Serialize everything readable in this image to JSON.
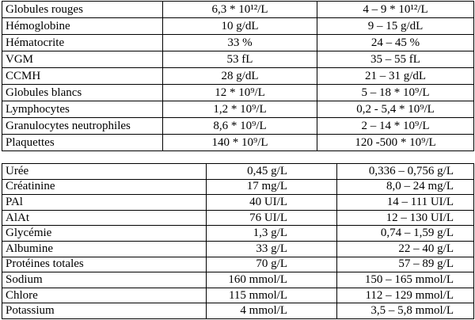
{
  "tables": [
    {
      "rows": [
        [
          "Globules rouges",
          "6,3 * 10¹²/L",
          "4 – 9 * 10¹²/L"
        ],
        [
          "Hémoglobine",
          "10 g/dL",
          "9 – 15 g/dL"
        ],
        [
          "Hématocrite",
          "33 %",
          "24 – 45 %"
        ],
        [
          "VGM",
          "53 fL",
          "35 – 55 fL"
        ],
        [
          "CCMH",
          "28 g/dL",
          "21 – 31 g/dL"
        ],
        [
          "Globules blancs",
          "12 * 10⁹/L",
          "5 – 18 * 10⁹/L"
        ],
        [
          "Lymphocytes",
          "1,2 * 10⁹/L",
          "0,2 - 5,4 * 10⁹/L"
        ],
        [
          "Granulocytes neutrophiles",
          "8,6 * 10⁹/L",
          "2 – 14 * 10⁹/L"
        ],
        [
          "Plaquettes",
          "140 * 10⁹/L",
          "120 -500 * 10⁹/L"
        ]
      ]
    },
    {
      "rows": [
        [
          "Urée",
          "0,45 g/L",
          "0,336 – 0,756 g/L"
        ],
        [
          "Créatinine",
          "17 mg/L",
          "8,0 – 24 mg/L"
        ],
        [
          "PAl",
          "40 UI/L",
          "14 – 111 UI/L"
        ],
        [
          "AlAt",
          "76 UI/L",
          "12 – 130 UI/L"
        ],
        [
          "Glycémie",
          "1,3 g/L",
          "0,74 – 1,59 g/L"
        ],
        [
          "Albumine",
          "33 g/L",
          "22 – 40 g/L"
        ],
        [
          "Protéines totales",
          "70 g/L",
          "57 – 89 g/L"
        ],
        [
          "Sodium",
          "160 mmol/L",
          "150 – 165 mmol/L"
        ],
        [
          "Chlore",
          "115 mmol/L",
          "112 – 129 mmol/L"
        ],
        [
          "Potassium",
          "4 mmol/L",
          "3,5 – 5,8 mmol/L"
        ]
      ]
    }
  ]
}
